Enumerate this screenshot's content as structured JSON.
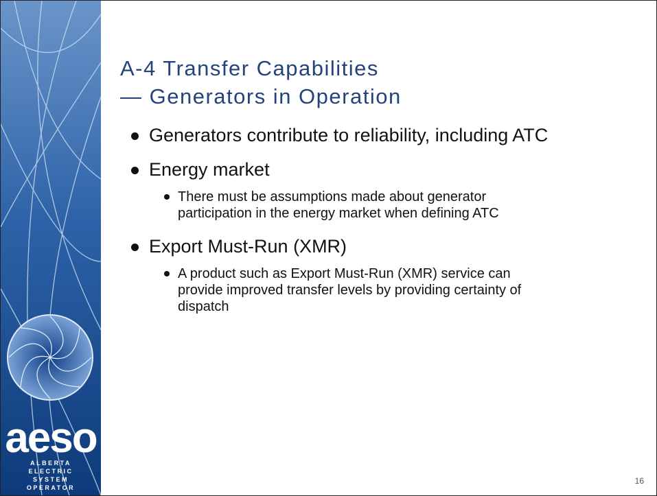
{
  "sidebar": {
    "logo_text": "aeso",
    "tagline": [
      "ALBERTA",
      "ELECTRIC",
      "SYSTEM",
      "OPERATOR"
    ]
  },
  "title": [
    "A-4 Transfer Capabilities",
    "— Generators in Operation"
  ],
  "bullets": [
    {
      "text": "Generators contribute to reliability, including ATC",
      "sub": []
    },
    {
      "text": "Energy market",
      "sub": [
        "There must be assumptions made about generator participation in the energy market when defining ATC"
      ]
    },
    {
      "text": "Export Must-Run (XMR)",
      "sub": [
        "A product such as Export Must-Run (XMR) service can provide improved transfer levels by providing certainty of dispatch"
      ]
    }
  ],
  "page_number": "16"
}
